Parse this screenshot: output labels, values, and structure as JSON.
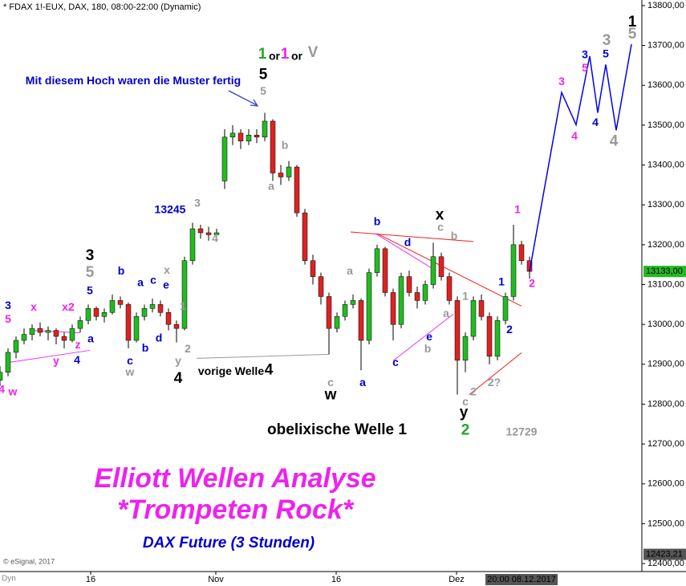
{
  "header": "* FDAX 1!-EUX, DAX, 180, 08:00-22:00 (Dynamic)",
  "copyright": "© eSignal, 2017",
  "corner_label": "Dyn",
  "title": "Elliott Wellen Analyse",
  "subtitle": "*Trompeten Rock*",
  "caption": "DAX Future (3 Stunden)",
  "chart_data": {
    "type": "candlestick",
    "up_color": "#22bb22",
    "down_color": "#dd2222",
    "xlim": [
      0,
      80
    ],
    "ylim": [
      12380,
      13814
    ],
    "xticks": [
      {
        "value": 11.3,
        "label": "16"
      },
      {
        "value": 26.9,
        "label": "Nov"
      },
      {
        "value": 41.9,
        "label": "16"
      },
      {
        "value": 56.9,
        "label": "Dez"
      }
    ],
    "yticks": [
      {
        "value": 12400,
        "label": "12400,00"
      },
      {
        "value": 12500,
        "label": "12500,00"
      },
      {
        "value": 12600,
        "label": "12600,00"
      },
      {
        "value": 12700,
        "label": "12700,00"
      },
      {
        "value": 12800,
        "label": "12800,00"
      },
      {
        "value": 12900,
        "label": "12900,00"
      },
      {
        "value": 13000,
        "label": "13000,00"
      },
      {
        "value": 13100,
        "label": "13100,00"
      },
      {
        "value": 13200,
        "label": "13200,00"
      },
      {
        "value": 13300,
        "label": "13300,00"
      },
      {
        "value": 13400,
        "label": "13400,00"
      },
      {
        "value": 13500,
        "label": "13500,00"
      },
      {
        "value": 13600,
        "label": "13600,00"
      },
      {
        "value": 13700,
        "label": "13700,00"
      },
      {
        "value": 13800,
        "label": "13800,00"
      }
    ],
    "last_price": {
      "value": 13133,
      "label": "13133,00"
    },
    "cursor_price": {
      "value": 12423.21,
      "label": "12423,21"
    },
    "cursor_x": {
      "value": 65,
      "label": "20:00 08.12.2017"
    },
    "candles": [
      [
        12860,
        12895,
        12845,
        12880
      ],
      [
        12880,
        12940,
        12870,
        12930
      ],
      [
        12930,
        12970,
        12915,
        12960
      ],
      [
        12960,
        12990,
        12950,
        12975
      ],
      [
        12975,
        13000,
        12960,
        12990
      ],
      [
        12990,
        13005,
        12970,
        12980
      ],
      [
        12980,
        12995,
        12960,
        12985
      ],
      [
        12985,
        12990,
        12950,
        12970
      ],
      [
        12970,
        12980,
        12940,
        12960
      ],
      [
        12960,
        13000,
        12955,
        12990
      ],
      [
        12990,
        13020,
        12980,
        13010
      ],
      [
        13010,
        13050,
        13000,
        13040
      ],
      [
        13040,
        13045,
        13010,
        13020
      ],
      [
        13020,
        13040,
        13005,
        13030
      ],
      [
        13030,
        13075,
        13025,
        13060
      ],
      [
        13060,
        13070,
        13040,
        13050
      ],
      [
        13050,
        13055,
        12940,
        12960
      ],
      [
        12960,
        13030,
        12955,
        13020
      ],
      [
        13020,
        13050,
        13010,
        13040
      ],
      [
        13040,
        13065,
        13030,
        13050
      ],
      [
        13050,
        13060,
        13020,
        13030
      ],
      [
        13030,
        13040,
        12985,
        13000
      ],
      [
        13000,
        13010,
        12955,
        12990
      ],
      [
        12990,
        13170,
        12985,
        13160
      ],
      [
        13160,
        13255,
        13150,
        13240
      ],
      [
        13240,
        13250,
        13215,
        13230
      ],
      [
        13230,
        13245,
        13210,
        13225
      ],
      [
        13225,
        13240,
        13215,
        13230
      ],
      [
        13360,
        13490,
        13340,
        13470
      ],
      [
        13470,
        13500,
        13450,
        13480
      ],
      [
        13480,
        13490,
        13440,
        13460
      ],
      [
        13460,
        13490,
        13450,
        13475
      ],
      [
        13475,
        13490,
        13455,
        13470
      ],
      [
        13470,
        13531,
        13460,
        13510
      ],
      [
        13510,
        13515,
        13360,
        13380
      ],
      [
        13380,
        13400,
        13350,
        13370
      ],
      [
        13370,
        13410,
        13360,
        13395
      ],
      [
        13395,
        13400,
        13270,
        13280
      ],
      [
        13280,
        13290,
        13150,
        13160
      ],
      [
        13160,
        13175,
        13100,
        13120
      ],
      [
        13120,
        13130,
        13050,
        13070
      ],
      [
        13070,
        13080,
        12925,
        12990
      ],
      [
        12990,
        13030,
        12980,
        13020
      ],
      [
        13020,
        13060,
        13010,
        13050
      ],
      [
        13050,
        13075,
        13040,
        13060
      ],
      [
        13060,
        13065,
        12885,
        12960
      ],
      [
        12960,
        13140,
        12950,
        13130
      ],
      [
        13130,
        13200,
        13120,
        13190
      ],
      [
        13190,
        13195,
        13070,
        13080
      ],
      [
        13080,
        13090,
        12960,
        13000
      ],
      [
        13000,
        13130,
        12990,
        13120
      ],
      [
        13120,
        13135,
        13070,
        13080
      ],
      [
        13080,
        13095,
        13040,
        13060
      ],
      [
        13060,
        13110,
        13050,
        13100
      ],
      [
        13100,
        13205,
        13090,
        13170
      ],
      [
        13170,
        13180,
        13110,
        13120
      ],
      [
        13120,
        13130,
        13050,
        13060
      ],
      [
        13060,
        13070,
        12824,
        12910
      ],
      [
        12910,
        12980,
        12880,
        12970
      ],
      [
        12970,
        13070,
        12960,
        13060
      ],
      [
        13060,
        13075,
        13010,
        13020
      ],
      [
        13020,
        13030,
        12900,
        12920
      ],
      [
        12920,
        13020,
        12910,
        13010
      ],
      [
        13010,
        13080,
        13000,
        13070
      ],
      [
        13070,
        13250,
        13060,
        13200
      ],
      [
        13200,
        13210,
        13150,
        13160
      ],
      [
        13160,
        13170,
        13115,
        13133
      ]
    ],
    "projection": {
      "color": "#0000ee",
      "x": [
        66,
        70,
        71.8,
        73.5,
        74.5,
        75.5,
        76.8,
        78.7
      ],
      "y": [
        13133,
        13582,
        13501,
        13673,
        13531,
        13652,
        13487,
        13703
      ]
    },
    "lines": [
      {
        "color": "#ee2222",
        "x": [
          43.7,
          59
        ],
        "y": [
          13232,
          13208
        ]
      },
      {
        "color": "#ee2222",
        "x": [
          47,
          65
        ],
        "y": [
          13228,
          13046
        ]
      },
      {
        "color": "#ee2222",
        "x": [
          58.5,
          65
        ],
        "y": [
          12824,
          12929
        ]
      },
      {
        "color": "#ee33ee",
        "x": [
          1.2,
          11.2
        ],
        "y": [
          12905,
          12935
        ]
      },
      {
        "color": "#ee33ee",
        "x": [
          3.8,
          10
        ],
        "y": [
          12985,
          12979
        ]
      },
      {
        "color": "#ee33ee",
        "x": [
          46.8,
          54
        ],
        "y": [
          13228,
          13139
        ]
      },
      {
        "color": "#ee33ee",
        "x": [
          49,
          56.5
        ],
        "y": [
          12909,
          13026
        ]
      },
      {
        "color": "#999999",
        "x": [
          24.5,
          41
        ],
        "y": [
          12915,
          12925
        ]
      }
    ],
    "annotations": [
      {
        "text": "3",
        "x": 1,
        "y": 13046,
        "color": "#0000cc"
      },
      {
        "text": "5",
        "x": 1,
        "y": 13012,
        "color": "#ee22ee"
      },
      {
        "text": "x",
        "x": 4.2,
        "y": 13042,
        "color": "#ee22ee"
      },
      {
        "text": "x2",
        "x": 8.5,
        "y": 13042,
        "color": "#ee22ee"
      },
      {
        "text": "w",
        "x": 1.6,
        "y": 12830,
        "color": "#ee22ee"
      },
      {
        "text": "y",
        "x": 7,
        "y": 12907,
        "color": "#ee22ee"
      },
      {
        "text": "z",
        "x": 9.7,
        "y": 12947,
        "color": "#ee22ee"
      },
      {
        "text": "4",
        "x": 9.6,
        "y": 12909,
        "color": "#0000cc"
      },
      {
        "text": "4",
        "x": 0.2,
        "y": 12836,
        "color": "#ee22ee"
      },
      {
        "text": "a",
        "x": 11.3,
        "y": 12962,
        "color": "#0000cc"
      },
      {
        "text": "3",
        "x": 11.2,
        "y": 13172,
        "color": "#000000",
        "big": true
      },
      {
        "text": "5",
        "x": 11.2,
        "y": 13129,
        "color": "#999999",
        "big": true
      },
      {
        "text": "5",
        "x": 11.2,
        "y": 13083,
        "color": "#0000cc"
      },
      {
        "text": "b",
        "x": 15.1,
        "y": 13133,
        "color": "#0000cc"
      },
      {
        "text": "a",
        "x": 17.5,
        "y": 13103,
        "color": "#0000cc"
      },
      {
        "text": "c",
        "x": 19.1,
        "y": 13109,
        "color": "#0000cc"
      },
      {
        "text": "e",
        "x": 20.7,
        "y": 13097,
        "color": "#0000cc"
      },
      {
        "text": "x",
        "x": 20.8,
        "y": 13135,
        "color": "#999999"
      },
      {
        "text": "d",
        "x": 19.8,
        "y": 12964,
        "color": "#0000cc"
      },
      {
        "text": "b",
        "x": 18.1,
        "y": 12939,
        "color": "#0000cc"
      },
      {
        "text": "c",
        "x": 16.2,
        "y": 12907,
        "color": "#0000cc"
      },
      {
        "text": "w",
        "x": 16.2,
        "y": 12879,
        "color": "#999999"
      },
      {
        "text": "1",
        "x": 22.8,
        "y": 13044,
        "color": "#999999"
      },
      {
        "text": "2",
        "x": 23.4,
        "y": 12937,
        "color": "#999999"
      },
      {
        "text": "y",
        "x": 22.2,
        "y": 12907,
        "color": "#999999"
      },
      {
        "text": "4",
        "x": 22.2,
        "y": 12863,
        "color": "#000000",
        "big": true
      },
      {
        "text": "13245",
        "x": 21.2,
        "y": 13287,
        "color": "#0000cc"
      },
      {
        "text": "3",
        "x": 24.6,
        "y": 13303,
        "color": "#999999"
      },
      {
        "text": "4",
        "x": 26.8,
        "y": 13214,
        "color": "#999999"
      },
      {
        "text": "vorige Welle",
        "x": 28.8,
        "y": 12881,
        "color": "#000000",
        "normal": true
      },
      {
        "text": "4",
        "x": 33.5,
        "y": 12885,
        "color": "#000000",
        "big": true
      },
      {
        "text": "1",
        "x": 32.7,
        "y": 13677,
        "color": "#22aa22",
        "big": true
      },
      {
        "text": "or",
        "x": 34.2,
        "y": 13671,
        "color": "#000000",
        "normal": true
      },
      {
        "text": "1",
        "x": 35.5,
        "y": 13677,
        "color": "#ee22ee",
        "big": true
      },
      {
        "text": "or",
        "x": 37,
        "y": 13671,
        "color": "#000000",
        "normal": true
      },
      {
        "text": "V",
        "x": 39,
        "y": 13681,
        "color": "#999999",
        "big": true
      },
      {
        "text": "Mit diesem Hoch waren die Muster fertig",
        "x": 16.6,
        "y": 13610,
        "color": "#0000cc"
      },
      {
        "text": "5",
        "x": 32.8,
        "y": 13626,
        "color": "#000000",
        "big": true
      },
      {
        "text": "5",
        "x": 32.8,
        "y": 13584,
        "color": "#999999"
      },
      {
        "text": "b",
        "x": 35.5,
        "y": 13448,
        "color": "#999999"
      },
      {
        "text": "a",
        "x": 33.8,
        "y": 13345,
        "color": "#999999"
      },
      {
        "text": "a",
        "x": 43.6,
        "y": 13133,
        "color": "#999999"
      },
      {
        "text": "c",
        "x": 41.2,
        "y": 12853,
        "color": "#999999"
      },
      {
        "text": "w",
        "x": 41.2,
        "y": 12822,
        "color": "#000000",
        "big": true
      },
      {
        "text": "a",
        "x": 45.2,
        "y": 12853,
        "color": "#0000cc"
      },
      {
        "text": "b",
        "x": 47,
        "y": 13257,
        "color": "#0000cc"
      },
      {
        "text": "d",
        "x": 50.8,
        "y": 13204,
        "color": "#0000cc"
      },
      {
        "text": "x",
        "x": 54.8,
        "y": 13273,
        "color": "#000000",
        "big": true
      },
      {
        "text": "c",
        "x": 54.9,
        "y": 13242,
        "color": "#999999"
      },
      {
        "text": "b",
        "x": 56.6,
        "y": 13220,
        "color": "#999999"
      },
      {
        "text": "e",
        "x": 53.5,
        "y": 12968,
        "color": "#0000cc"
      },
      {
        "text": "b",
        "x": 53.3,
        "y": 12937,
        "color": "#999999"
      },
      {
        "text": "c",
        "x": 49.3,
        "y": 12903,
        "color": "#0000cc"
      },
      {
        "text": "a",
        "x": 55.6,
        "y": 13026,
        "color": "#999999"
      },
      {
        "text": "1",
        "x": 58,
        "y": 13069,
        "color": "#999999"
      },
      {
        "text": "c",
        "x": 58,
        "y": 12804,
        "color": "#999999"
      },
      {
        "text": "y",
        "x": 57.8,
        "y": 12778,
        "color": "#000000",
        "big": true
      },
      {
        "text": "2",
        "x": 58,
        "y": 12733,
        "color": "#22aa22",
        "big": true
      },
      {
        "text": "2",
        "x": 59,
        "y": 12830,
        "color": "#999999"
      },
      {
        "text": "2?",
        "x": 61.6,
        "y": 12853,
        "color": "#999999"
      },
      {
        "text": "1",
        "x": 62.5,
        "y": 13105,
        "color": "#0000cc"
      },
      {
        "text": "2",
        "x": 63.5,
        "y": 12986,
        "color": "#0000cc"
      },
      {
        "text": "1",
        "x": 64.5,
        "y": 13287,
        "color": "#ee22ee"
      },
      {
        "text": "2",
        "x": 66.3,
        "y": 13101,
        "color": "#ee22ee"
      },
      {
        "text": "12729",
        "x": 65,
        "y": 12729,
        "color": "#999999"
      },
      {
        "text": "obelixische Welle 1",
        "x": 42,
        "y": 12735,
        "color": "#000000",
        "big": true
      },
      {
        "text": "3",
        "x": 70,
        "y": 13608,
        "color": "#ee22ee"
      },
      {
        "text": "4",
        "x": 71.6,
        "y": 13471,
        "color": "#ee22ee"
      },
      {
        "text": "3",
        "x": 72.9,
        "y": 13675,
        "color": "#0000cc"
      },
      {
        "text": "5",
        "x": 72.9,
        "y": 13642,
        "color": "#ee22ee"
      },
      {
        "text": "4",
        "x": 74.2,
        "y": 13505,
        "color": "#0000cc"
      },
      {
        "text": "3",
        "x": 75.6,
        "y": 13711,
        "color": "#999999",
        "big": true
      },
      {
        "text": "5",
        "x": 75.5,
        "y": 13677,
        "color": "#0000cc"
      },
      {
        "text": "4",
        "x": 76.5,
        "y": 13459,
        "color": "#999999",
        "big": true
      },
      {
        "text": "1",
        "x": 78.8,
        "y": 13758,
        "color": "#000000",
        "big": true
      },
      {
        "text": "5",
        "x": 78.8,
        "y": 13727,
        "color": "#999999",
        "big": true
      }
    ]
  }
}
